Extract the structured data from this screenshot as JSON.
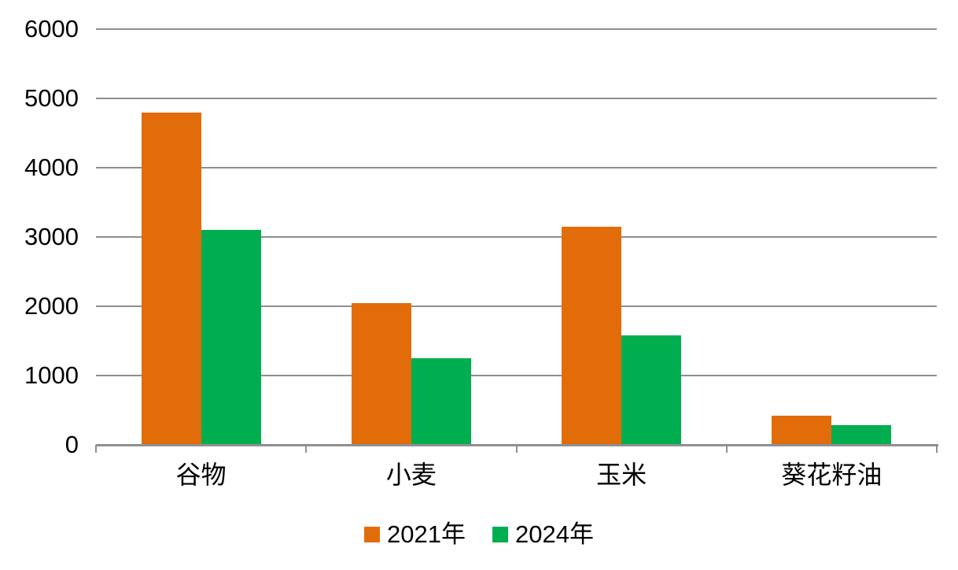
{
  "chart_data": {
    "type": "bar",
    "title": "",
    "xlabel": "",
    "ylabel": "",
    "categories": [
      "谷物",
      "小麦",
      "玉米",
      "葵花籽油"
    ],
    "series": [
      {
        "name": "2021年",
        "color": "#E36C0A",
        "values": [
          4800,
          2040,
          3150,
          420
        ]
      },
      {
        "name": "2024年",
        "color": "#00AE50",
        "values": [
          3100,
          1250,
          1580,
          280
        ]
      }
    ],
    "ylim": [
      0,
      6000
    ],
    "yticks": [
      0,
      1000,
      2000,
      3000,
      4000,
      5000,
      6000
    ],
    "grid": true,
    "gridline_color": "#8F8F8F",
    "axis_color": "#8F8F8F",
    "text_color": "#000000",
    "legend_position": "bottom"
  }
}
